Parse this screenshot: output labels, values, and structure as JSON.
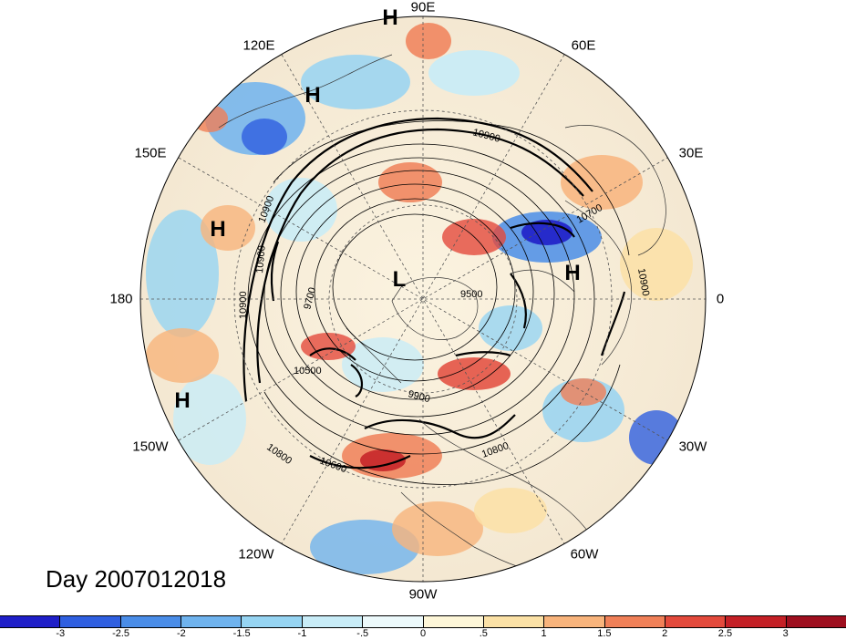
{
  "map": {
    "projection": "polar stereographic, north pole centered",
    "day_label": "Day 2007012018",
    "longitude_labels": [
      "90E",
      "60E",
      "30E",
      "0",
      "30W",
      "60W",
      "90W",
      "120W",
      "150W",
      "180",
      "150E",
      "120E"
    ],
    "pressure_systems": [
      {
        "label": "H",
        "name": "high-label-east-asia"
      },
      {
        "label": "H",
        "name": "high-label-north-pacific"
      },
      {
        "label": "H",
        "name": "high-label-east-pacific"
      },
      {
        "label": "H",
        "name": "high-label-europe"
      },
      {
        "label": "H",
        "name": "high-label-top-edge"
      },
      {
        "label": "L",
        "name": "low-label-arctic"
      }
    ],
    "contour_labels": [
      "10900",
      "10900",
      "10900",
      "10900",
      "9700",
      "9500",
      "10700",
      "10900",
      "10500",
      "9900",
      "10800",
      "10600",
      "10800"
    ],
    "colors": {
      "ocean_gray": "#cfd8dc",
      "contour": "#000000"
    }
  },
  "colorbar": {
    "tick_labels": [
      "-3",
      "-2.5",
      "-2",
      "-1.5",
      "-1",
      "-.5",
      "0",
      ".5",
      "1",
      "1.5",
      "2",
      "2.5",
      "3"
    ],
    "colors": [
      "#1f1fc8",
      "#2f5fe0",
      "#4a8de8",
      "#6fb3ee",
      "#96d4f2",
      "#c8ecf7",
      "#ecf9fb",
      "#fdf6d8",
      "#fbe1a6",
      "#f8b47c",
      "#f08058",
      "#e34a3c",
      "#c42026",
      "#9e0f1f"
    ]
  }
}
